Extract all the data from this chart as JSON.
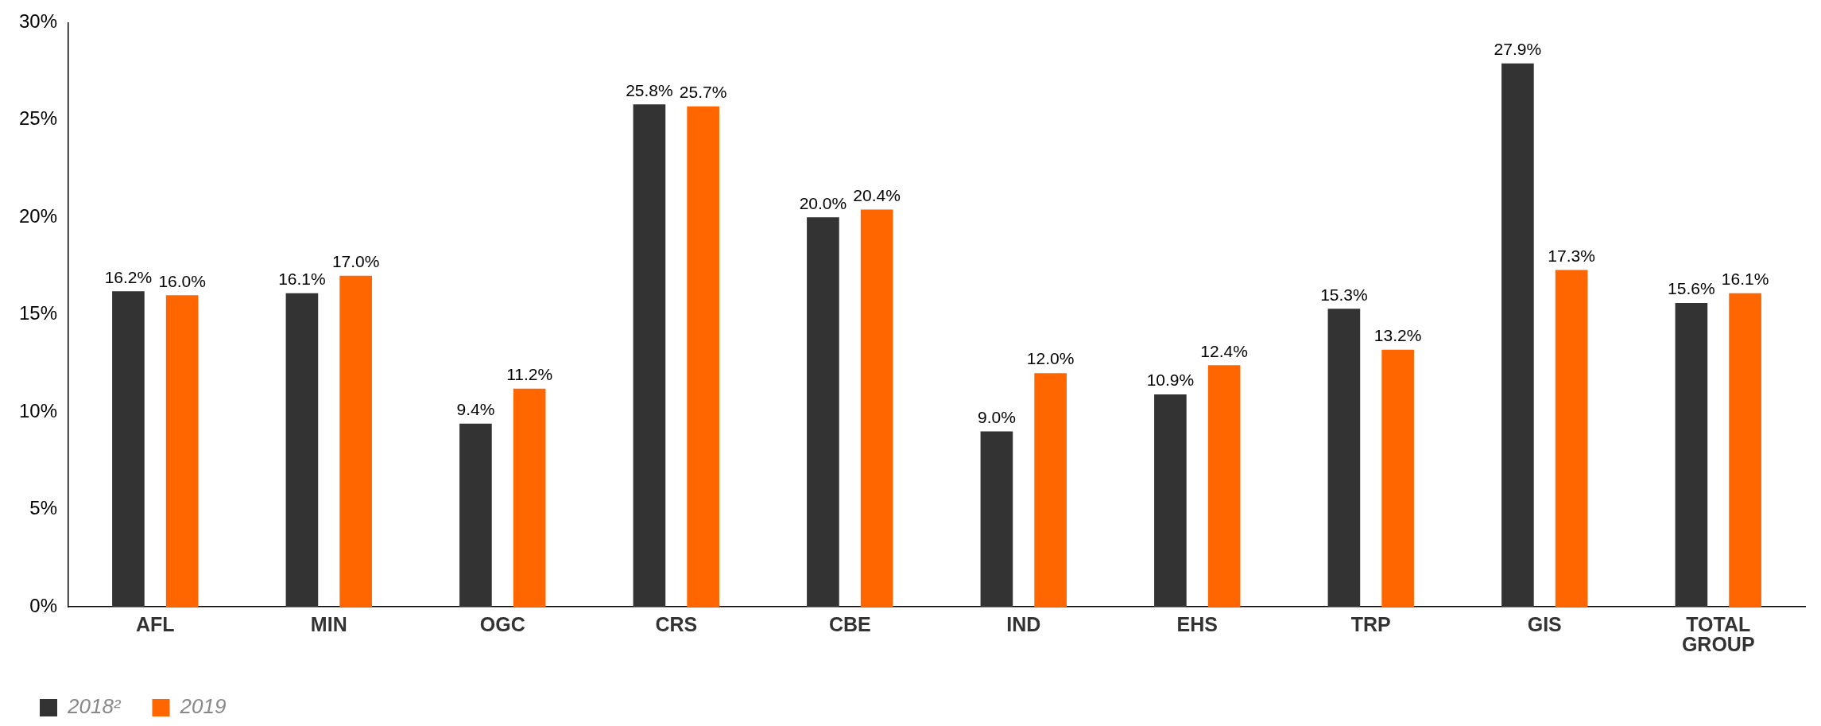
{
  "chart_data": {
    "type": "bar",
    "categories": [
      "AFL",
      "MIN",
      "OGC",
      "CRS",
      "CBE",
      "IND",
      "EHS",
      "TRP",
      "GIS",
      "TOTAL GROUP"
    ],
    "series": [
      {
        "name": "2018²",
        "color": "#333333",
        "values": [
          16.2,
          16.1,
          9.4,
          25.8,
          20.0,
          9.0,
          10.9,
          15.3,
          27.9,
          15.6
        ],
        "value_labels": [
          "16.2%",
          "16.1%",
          "9.4%",
          "25.8%",
          "20.0%",
          "9.0%",
          "10.9%",
          "15.3%",
          "27.9%",
          "15.6%"
        ]
      },
      {
        "name": "2019",
        "color": "#ff6600",
        "values": [
          16.0,
          17.0,
          11.2,
          25.7,
          20.4,
          12.0,
          12.4,
          13.2,
          17.3,
          16.1
        ],
        "value_labels": [
          "16.0%",
          "17.0%",
          "11.2%",
          "25.7%",
          "20.4%",
          "12.0%",
          "12.4%",
          "13.2%",
          "17.3%",
          "16.1%"
        ]
      }
    ],
    "ylim": [
      0,
      30
    ],
    "yticks": [
      {
        "value": 0,
        "label": "0%"
      },
      {
        "value": 5,
        "label": "5%"
      },
      {
        "value": 10,
        "label": "10%"
      },
      {
        "value": 15,
        "label": "15%"
      },
      {
        "value": 20,
        "label": "20%"
      },
      {
        "value": 25,
        "label": "25%"
      },
      {
        "value": 30,
        "label": "30%"
      }
    ],
    "grid": false,
    "legend": "bottom left"
  }
}
